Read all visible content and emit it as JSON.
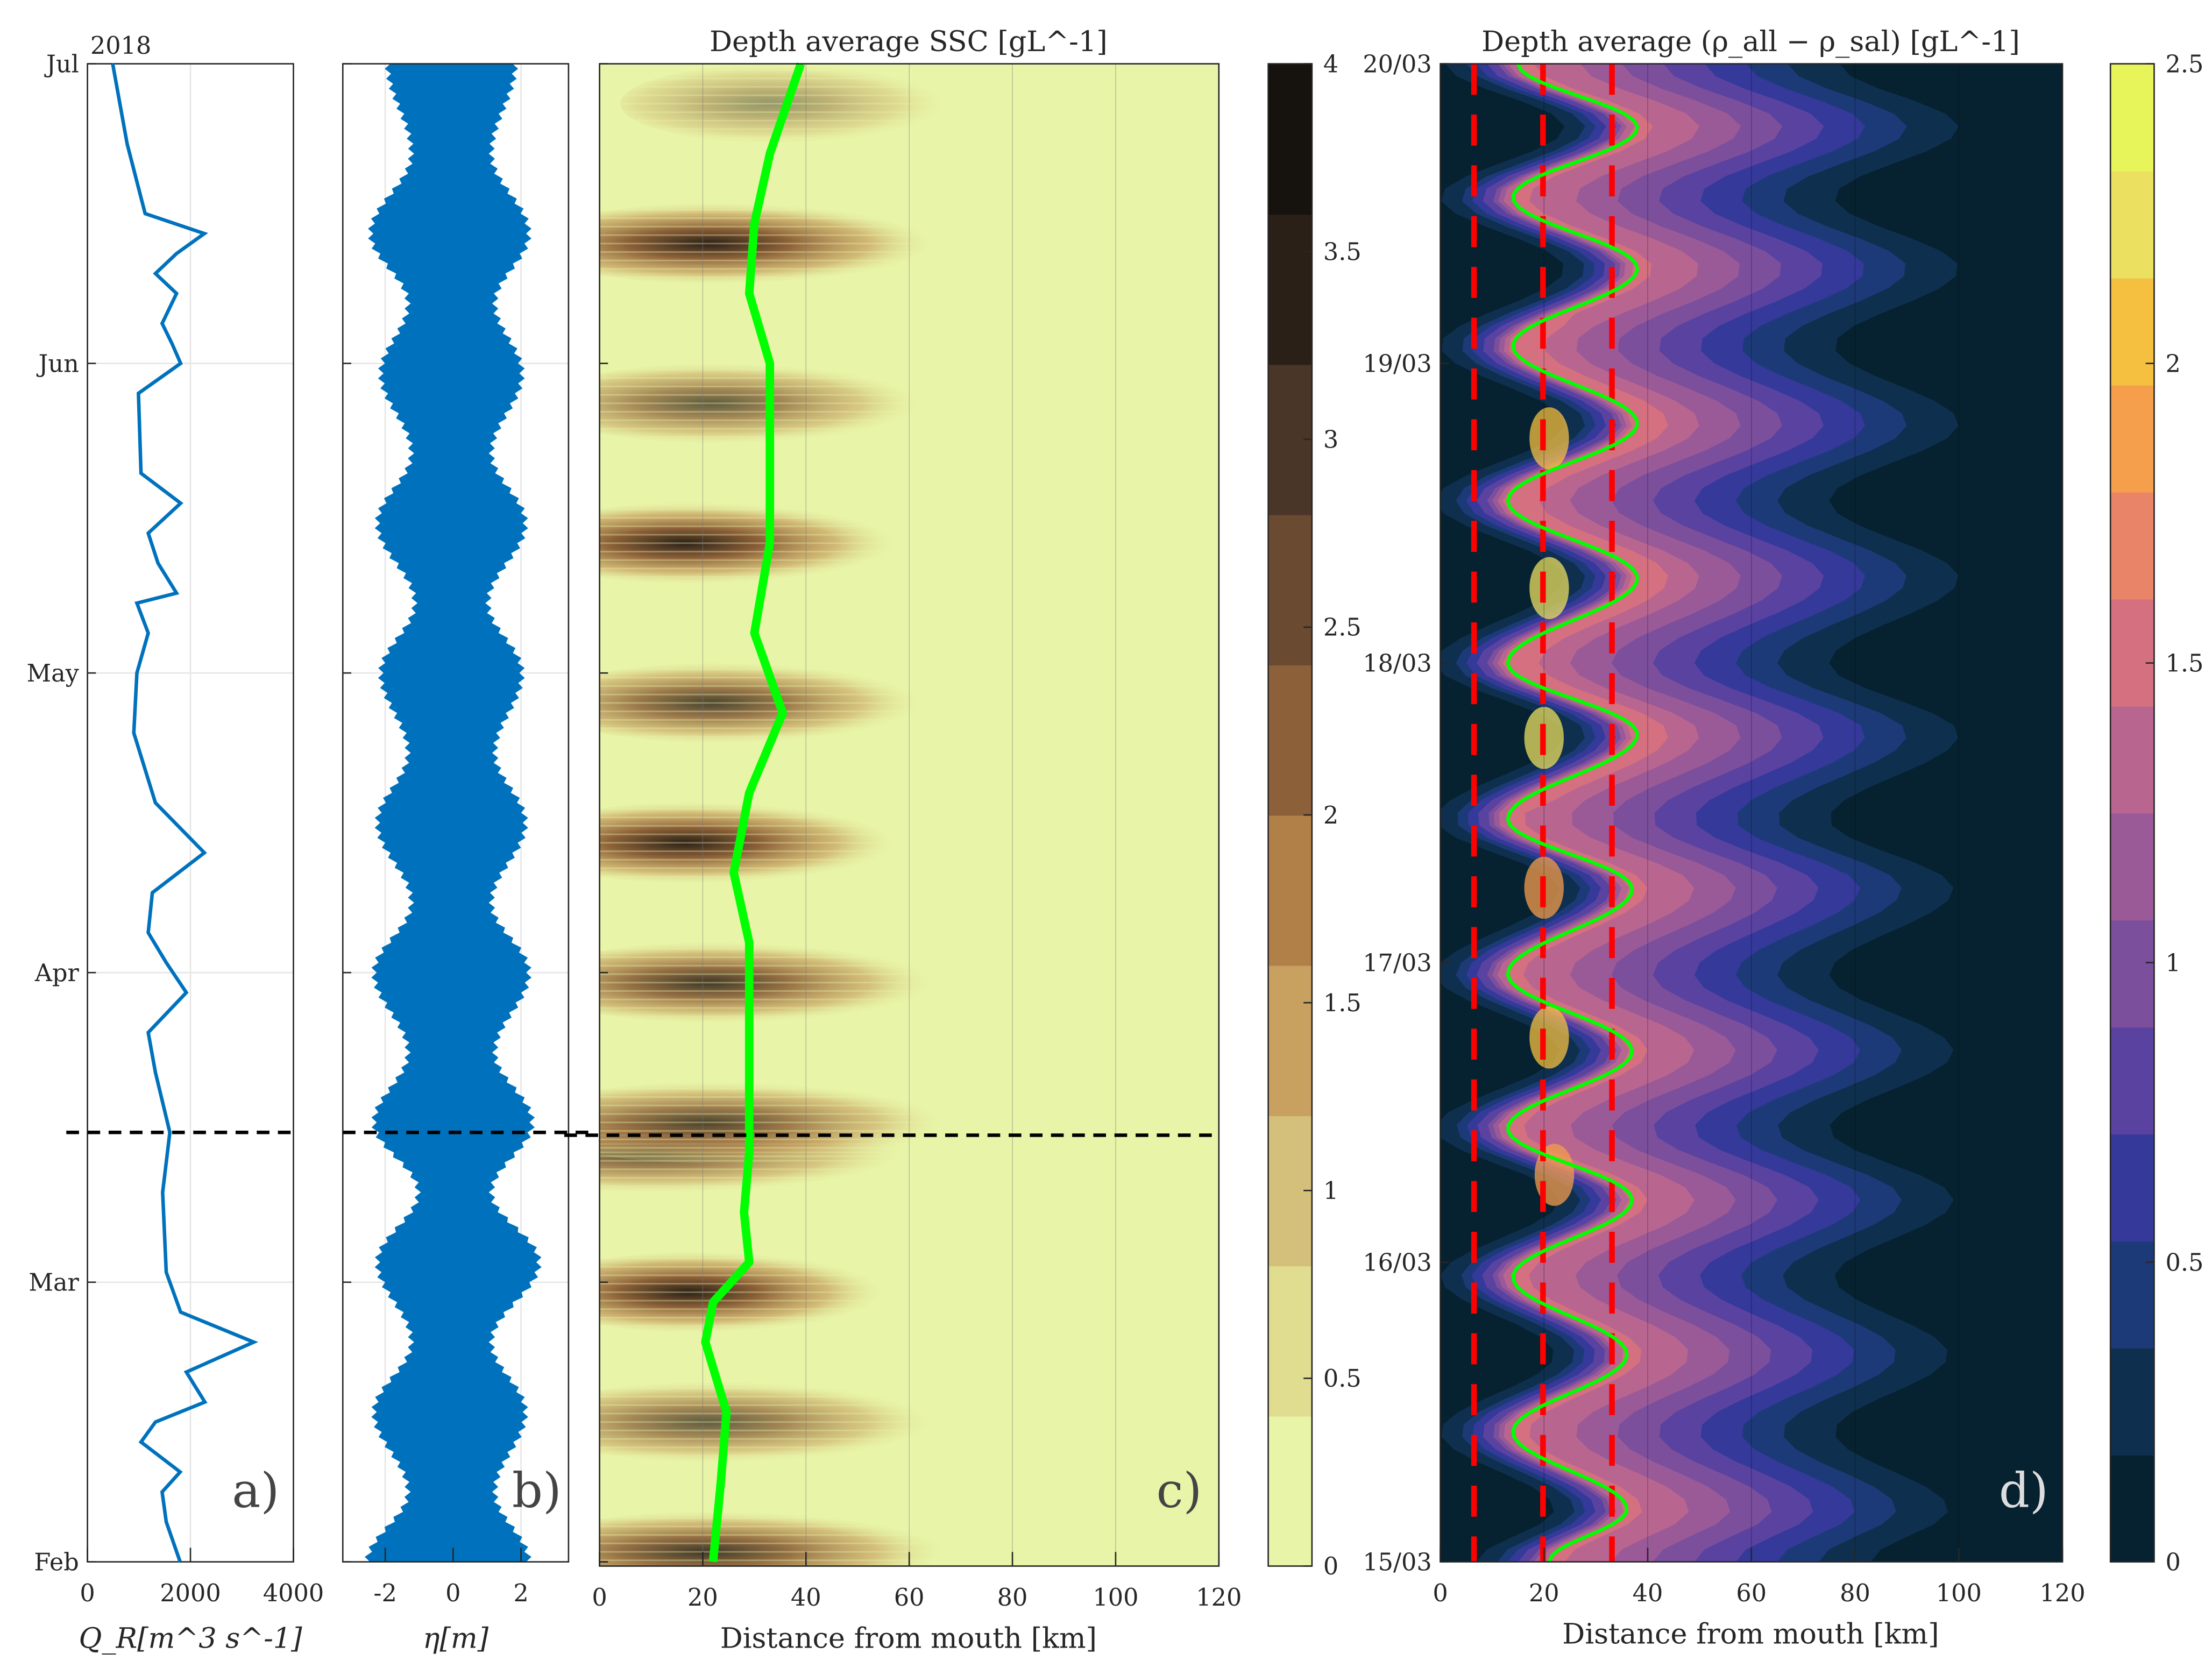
{
  "chart_data": [
    {
      "id": "a",
      "type": "line",
      "panel_label": "a)",
      "year_label": "2018",
      "xlabel": "Q_R[m^3 s^-1]",
      "xlim": [
        0,
        4000
      ],
      "xticks": [
        "0",
        "2000",
        "4000"
      ],
      "yticks": [
        "Feb",
        "Mar",
        "Apr",
        "May",
        "Jun",
        "Jul"
      ],
      "ytick_dates": [
        "2018-02-01",
        "2018-03-01",
        "2018-04-01",
        "2018-05-01",
        "2018-06-01",
        "2018-07-01"
      ],
      "ylim": [
        "2018-02-01",
        "2018-07-01"
      ],
      "grid": true,
      "color": "#0072BD",
      "marker_date": "2018-03-16",
      "series": {
        "dates": [
          "2018-02-01",
          "2018-02-05",
          "2018-02-08",
          "2018-02-10",
          "2018-02-13",
          "2018-02-15",
          "2018-02-17",
          "2018-02-20",
          "2018-02-23",
          "2018-02-26",
          "2018-03-02",
          "2018-03-10",
          "2018-03-16",
          "2018-03-22",
          "2018-03-26",
          "2018-03-30",
          "2018-04-02",
          "2018-04-05",
          "2018-04-09",
          "2018-04-13",
          "2018-04-18",
          "2018-04-25",
          "2018-05-01",
          "2018-05-05",
          "2018-05-08",
          "2018-05-09",
          "2018-05-12",
          "2018-05-15",
          "2018-05-18",
          "2018-05-21",
          "2018-05-29",
          "2018-06-01",
          "2018-06-03",
          "2018-06-05",
          "2018-06-08",
          "2018-06-10",
          "2018-06-12",
          "2018-06-14",
          "2018-06-16",
          "2018-06-23",
          "2018-07-01"
        ],
        "values": [
          1800,
          1530,
          1450,
          1800,
          1040,
          1320,
          2280,
          1920,
          3230,
          1810,
          1530,
          1460,
          1600,
          1320,
          1180,
          1920,
          1530,
          1180,
          1260,
          2270,
          1320,
          900,
          960,
          1180,
          960,
          1730,
          1370,
          1180,
          1810,
          1040,
          990,
          1810,
          1640,
          1450,
          1730,
          1320,
          1730,
          2270,
          1120,
          770,
          490
        ]
      }
    },
    {
      "id": "b",
      "type": "area",
      "panel_label": "b)",
      "xlabel": "η[m]",
      "xlim": [
        -3.25,
        3.4
      ],
      "xticks": [
        "-2",
        "0",
        "2"
      ],
      "xtick_values": [
        -2,
        0,
        2
      ],
      "color": "#0072BD",
      "envelope": {
        "dates": [
          "2018-02-01",
          "2018-02-08",
          "2018-02-16",
          "2018-02-23",
          "2018-03-03",
          "2018-03-10",
          "2018-03-17",
          "2018-03-24",
          "2018-04-01",
          "2018-04-08",
          "2018-04-16",
          "2018-04-23",
          "2018-05-01",
          "2018-05-08",
          "2018-05-16",
          "2018-05-23",
          "2018-05-31",
          "2018-06-07",
          "2018-06-14",
          "2018-06-22",
          "2018-07-01"
        ],
        "high": [
          2.2,
          1.2,
          2.1,
          1.1,
          2.5,
          1.1,
          2.3,
          1.2,
          2.2,
          1.1,
          2.1,
          1.2,
          2.0,
          1.0,
          2.1,
          1.1,
          2.0,
          1.2,
          2.2,
          1.1,
          1.8
        ],
        "low": [
          -2.5,
          -1.3,
          -2.3,
          -1.2,
          -2.2,
          -1.0,
          -2.3,
          -1.3,
          -2.3,
          -1.2,
          -2.2,
          -1.3,
          -2.1,
          -1.1,
          -2.2,
          -1.2,
          -2.1,
          -1.3,
          -2.4,
          -1.2,
          -1.9
        ]
      }
    },
    {
      "id": "c",
      "type": "heatmap",
      "panel_label": "c)",
      "title": "Depth average SSC [gL^-1]",
      "xlabel": "Distance from mouth [km]",
      "xlim": [
        0,
        120
      ],
      "xticks": [
        "0",
        "20",
        "40",
        "60",
        "80",
        "100",
        "120"
      ],
      "xtick_values": [
        0,
        20,
        40,
        60,
        80,
        100,
        120
      ],
      "colorbar": {
        "lim": [
          0,
          4
        ],
        "ticks": [
          "0",
          "0.5",
          "1",
          "1.5",
          "2",
          "2.5",
          "3",
          "3.5",
          "4"
        ],
        "tick_values": [
          0,
          0.5,
          1,
          1.5,
          2,
          2.5,
          3,
          3.5,
          4
        ],
        "colors": [
          "#e8f5a8",
          "#e0dc90",
          "#d4c07a",
          "#c8a060",
          "#b08048",
          "#8c6038",
          "#6a4a30",
          "#4a3628",
          "#2a2018",
          "#16120e"
        ]
      },
      "ssc_peaks": {
        "dates": [
          "2018-02-02",
          "2018-02-15",
          "2018-02-28",
          "2018-03-14",
          "2018-03-17",
          "2018-03-31",
          "2018-04-14",
          "2018-04-28",
          "2018-05-14",
          "2018-05-28",
          "2018-06-13",
          "2018-06-27"
        ],
        "center_km": [
          30,
          30,
          25,
          20,
          30,
          30,
          25,
          30,
          25,
          30,
          30,
          40
        ],
        "extent_km": [
          80,
          75,
          65,
          85,
          80,
          75,
          70,
          70,
          70,
          70,
          75,
          60
        ],
        "peak": [
          3.2,
          2.6,
          3.8,
          2.8,
          2.9,
          3.2,
          3.8,
          3.0,
          3.9,
          2.6,
          3.9,
          1.6
        ]
      },
      "line": {
        "color": "#00FF00",
        "dates": [
          "2018-02-01",
          "2018-02-09",
          "2018-02-16",
          "2018-02-23",
          "2018-02-27",
          "2018-03-03",
          "2018-03-08",
          "2018-03-14",
          "2018-03-28",
          "2018-04-04",
          "2018-04-11",
          "2018-04-19",
          "2018-04-27",
          "2018-05-05",
          "2018-05-14",
          "2018-05-25",
          "2018-06-01",
          "2018-06-08",
          "2018-06-15",
          "2018-06-22",
          "2018-07-01"
        ],
        "km": [
          22,
          23.5,
          24.6,
          20.5,
          22,
          29,
          28,
          29,
          29,
          29,
          26,
          29,
          35.5,
          30,
          33,
          33,
          33,
          29,
          30,
          33,
          39
        ]
      }
    },
    {
      "id": "d",
      "type": "heatmap",
      "panel_label": "d)",
      "title": "Depth average (ρ_all − ρ_sal) [gL^-1]",
      "xlabel": "Distance from mouth [km]",
      "xlim": [
        0,
        120
      ],
      "xticks": [
        "0",
        "20",
        "40",
        "60",
        "80",
        "100",
        "120"
      ],
      "xtick_values": [
        0,
        20,
        40,
        60,
        80,
        100,
        120
      ],
      "yticks": [
        "15/03",
        "16/03",
        "17/03",
        "18/03",
        "19/03",
        "20/03"
      ],
      "ylim_hours": [
        0,
        120
      ],
      "colorbar": {
        "lim": [
          0,
          2.5
        ],
        "ticks": [
          "0",
          "0.5",
          "1",
          "1.5",
          "2",
          "2.5"
        ],
        "tick_values": [
          0,
          0.5,
          1,
          1.5,
          2,
          2.5
        ],
        "colors": [
          "#062230",
          "#0f2f4f",
          "#1d3a78",
          "#34399a",
          "#5a42a0",
          "#7b4f9c",
          "#9a5a98",
          "#b86690",
          "#d47080",
          "#ea8468",
          "#f59e4c",
          "#f5c040",
          "#ece060",
          "#e8f55a"
        ]
      },
      "red_lines_km": [
        6.5,
        19.8,
        33.1
      ],
      "red_color": "#FF0000",
      "line": {
        "color": "#00FF00",
        "hours": [
          0,
          4.2,
          10.4,
          16.6,
          22.8,
          29.0,
          34.7,
          40.9,
          47.1,
          53.9,
          59.5,
          66.3,
          72.0,
          78.8,
          85.0,
          91.2,
          97.4,
          103.6,
          109.3,
          114.9,
          120
        ],
        "km": [
          21,
          36,
          14,
          36,
          14,
          37,
          13,
          37,
          13,
          37,
          13,
          38,
          13,
          38,
          13,
          38,
          14,
          38,
          14,
          38,
          15
        ]
      }
    }
  ]
}
